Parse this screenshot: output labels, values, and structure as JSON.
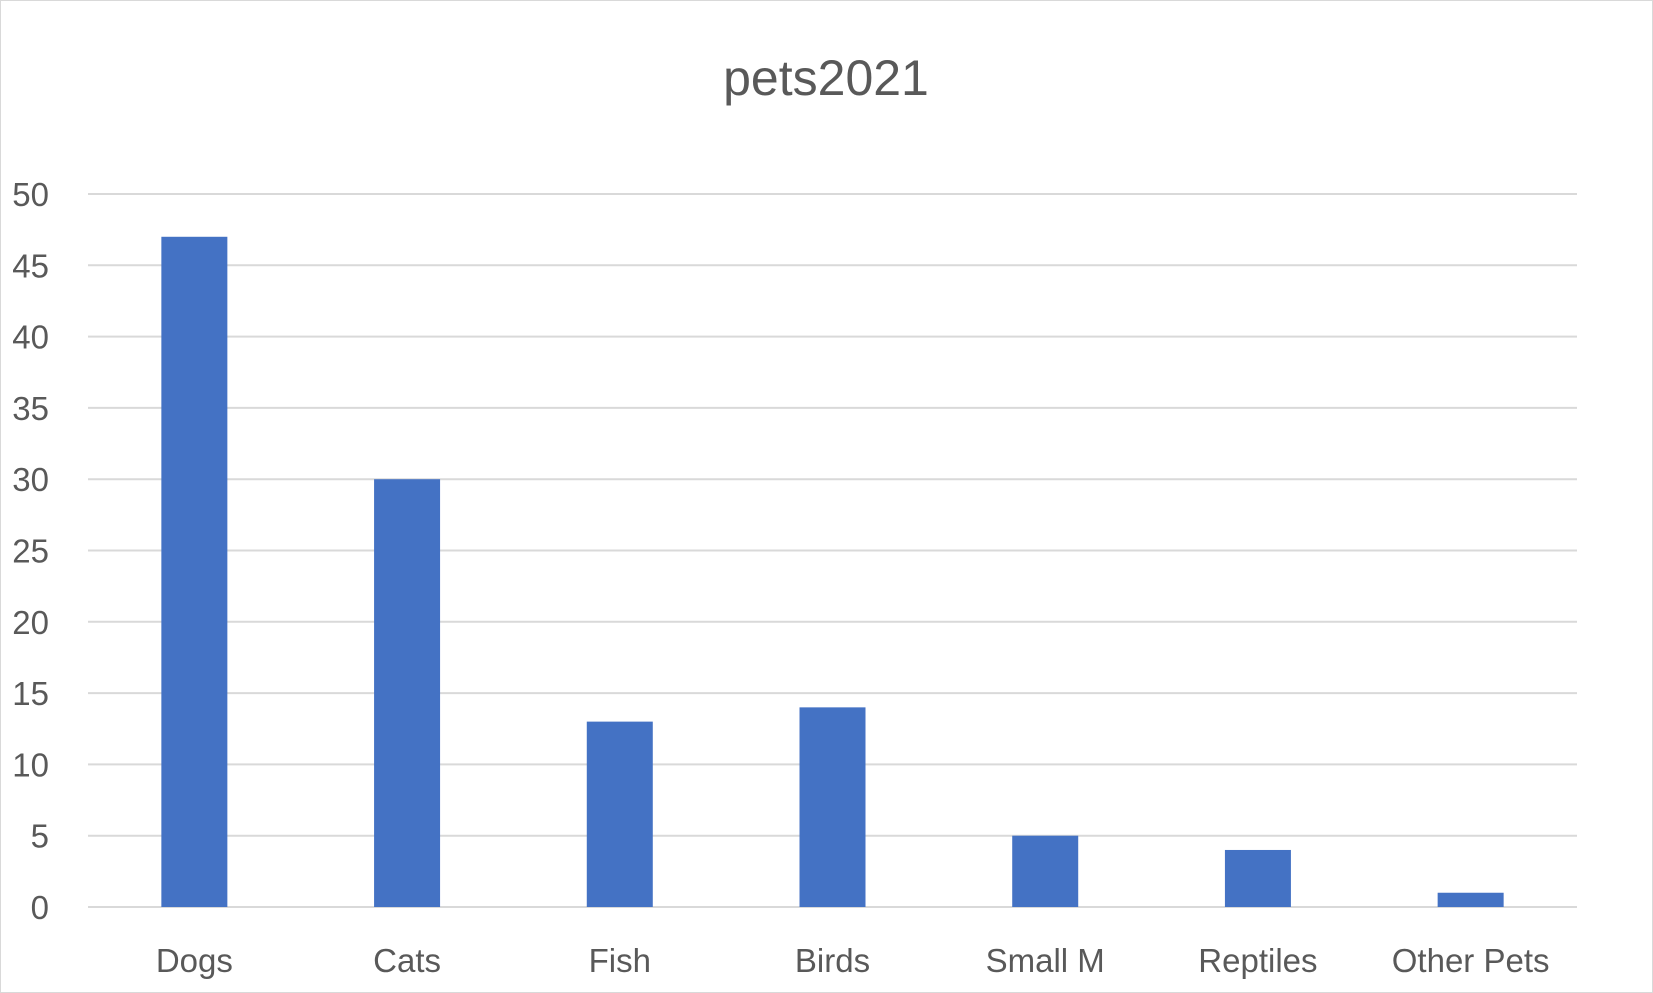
{
  "chart_data": {
    "type": "bar",
    "title": "pets2021",
    "xlabel": "",
    "ylabel": "",
    "categories": [
      "Dogs",
      "Cats",
      "Fish",
      "Birds",
      "Small M",
      "Reptiles",
      "Other Pets"
    ],
    "values": [
      47,
      30,
      13,
      14,
      5,
      4,
      1
    ],
    "ylim": [
      0,
      50
    ],
    "yticks": [
      0,
      5,
      10,
      15,
      20,
      25,
      30,
      35,
      40,
      45,
      50
    ],
    "grid": true,
    "legend": "none",
    "colors": {
      "bar": "#4472C4",
      "grid": "#D9D9D9",
      "text": "#595959"
    }
  }
}
